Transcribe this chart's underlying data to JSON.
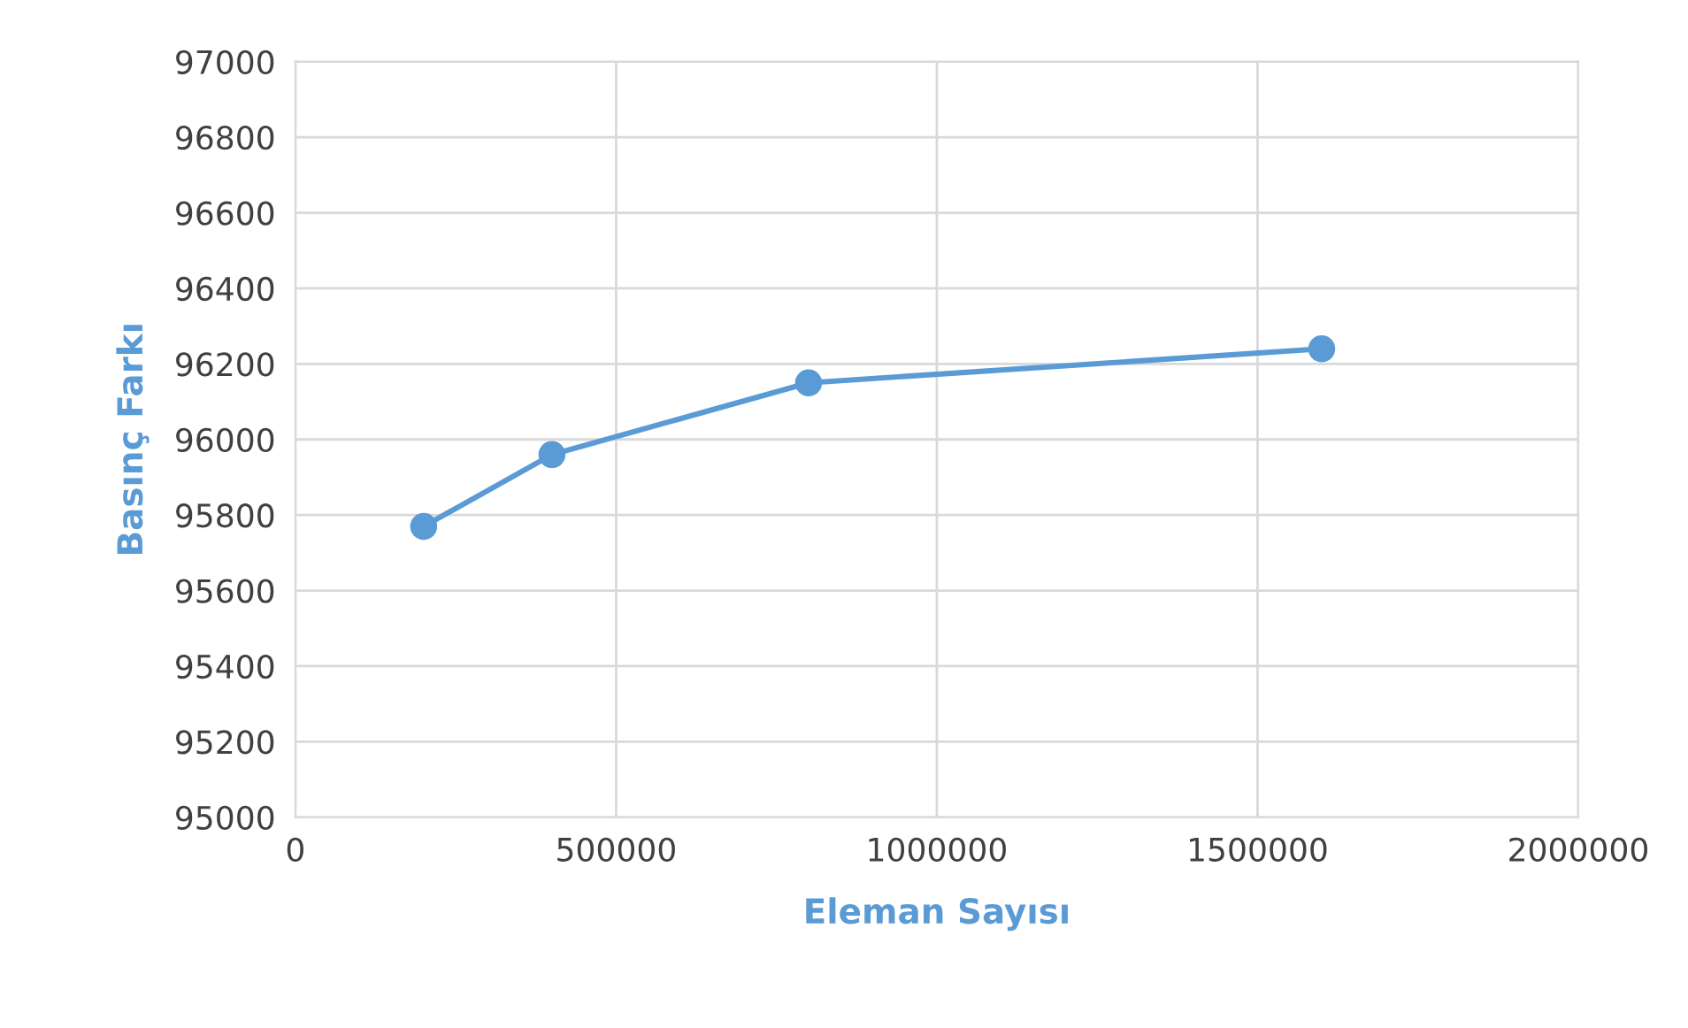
{
  "chart_data": {
    "type": "line",
    "xlabel": "Eleman Sayısı",
    "ylabel": "Basınç Farkı",
    "x": [
      200000,
      400000,
      800000,
      1600000
    ],
    "series": [
      {
        "color": "#5b9bd5",
        "values": [
          95770,
          95960,
          96150,
          96240
        ]
      }
    ],
    "xlim": [
      0,
      2000000
    ],
    "xticks": [
      0,
      500000,
      1000000,
      1500000,
      2000000
    ],
    "ylim": [
      95000,
      97000
    ],
    "yticks": [
      95000,
      95200,
      95400,
      95600,
      95800,
      96000,
      96200,
      96400,
      96600,
      96800,
      97000
    ],
    "grid": true,
    "marker": "circle",
    "line_style": "solid",
    "legend": false
  }
}
